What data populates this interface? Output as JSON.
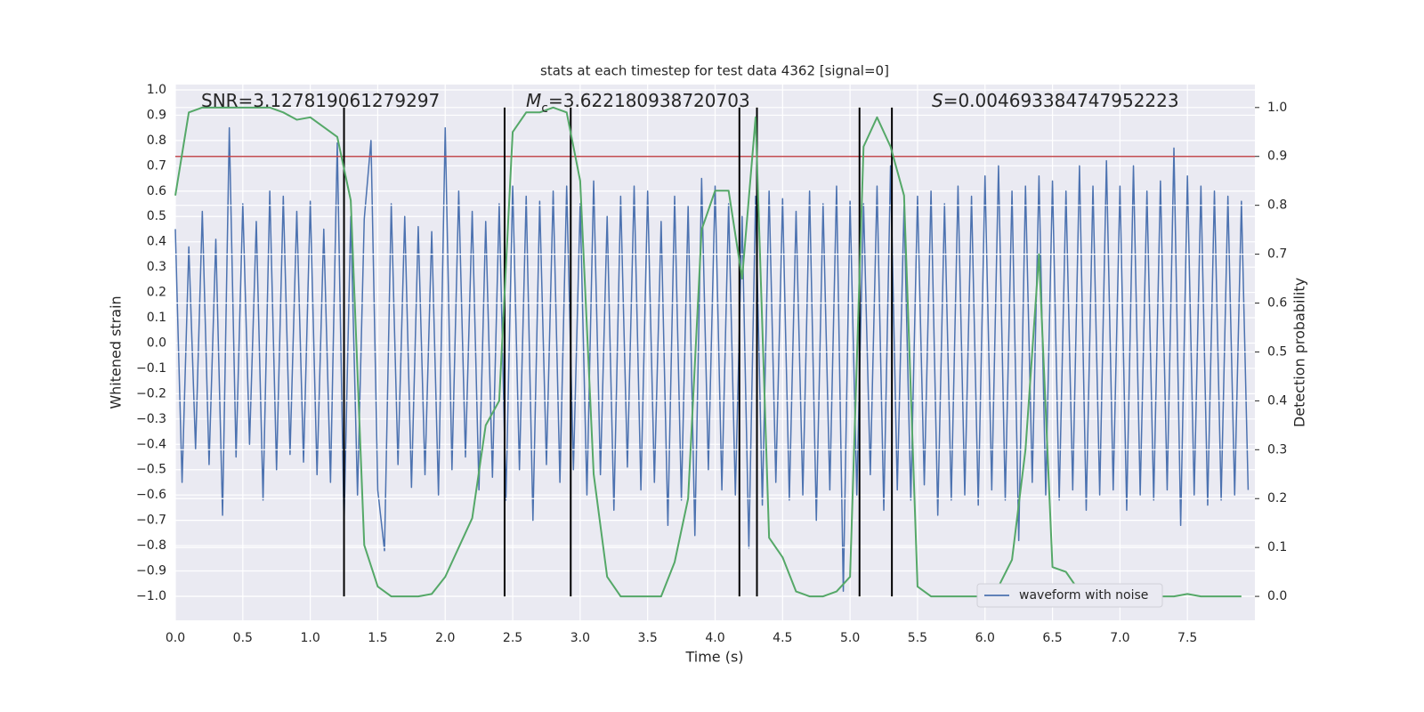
{
  "chart_data": {
    "type": "line",
    "title": "stats at each timestep for test data 4362 [signal=0]",
    "xlabel": "Time (s)",
    "ylabel": "Whitened strain",
    "y2label": "Detection probability",
    "xlim": [
      0,
      8.0
    ],
    "ylim": [
      -1.095,
      1.021
    ],
    "y2lim": [
      -0.049,
      1.047
    ],
    "grid": true,
    "legend": "lower right",
    "xticks": [
      {
        "value": 0,
        "label": "0.0"
      },
      {
        "value": 0.5,
        "label": "0.5"
      },
      {
        "value": 1,
        "label": "1.0"
      },
      {
        "value": 1.5,
        "label": "1.5"
      },
      {
        "value": 2,
        "label": "2.0"
      },
      {
        "value": 2.5,
        "label": "2.5"
      },
      {
        "value": 3,
        "label": "3.0"
      },
      {
        "value": 3.5,
        "label": "3.5"
      },
      {
        "value": 4,
        "label": "4.0"
      },
      {
        "value": 4.5,
        "label": "4.5"
      },
      {
        "value": 5,
        "label": "5.0"
      },
      {
        "value": 5.5,
        "label": "5.5"
      },
      {
        "value": 6,
        "label": "6.0"
      },
      {
        "value": 6.5,
        "label": "6.5"
      },
      {
        "value": 7,
        "label": "7.0"
      },
      {
        "value": 7.5,
        "label": "7.5"
      }
    ],
    "yticks": [
      {
        "value": -1,
        "label": "−1.0"
      },
      {
        "value": -0.9,
        "label": "−0.9"
      },
      {
        "value": -0.8,
        "label": "−0.8"
      },
      {
        "value": -0.7,
        "label": "−0.7"
      },
      {
        "value": -0.6,
        "label": "−0.6"
      },
      {
        "value": -0.5,
        "label": "−0.5"
      },
      {
        "value": -0.4,
        "label": "−0.4"
      },
      {
        "value": -0.3,
        "label": "−0.3"
      },
      {
        "value": -0.2,
        "label": "−0.2"
      },
      {
        "value": -0.1,
        "label": "−0.1"
      },
      {
        "value": 0,
        "label": "0.0"
      },
      {
        "value": 0.1,
        "label": "0.1"
      },
      {
        "value": 0.2,
        "label": "0.2"
      },
      {
        "value": 0.3,
        "label": "0.3"
      },
      {
        "value": 0.4,
        "label": "0.4"
      },
      {
        "value": 0.5,
        "label": "0.5"
      },
      {
        "value": 0.6,
        "label": "0.6"
      },
      {
        "value": 0.7,
        "label": "0.7"
      },
      {
        "value": 0.8,
        "label": "0.8"
      },
      {
        "value": 0.9,
        "label": "0.9"
      },
      {
        "value": 1,
        "label": "1.0"
      }
    ],
    "y2ticks": [
      {
        "value": 0,
        "label": "0.0"
      },
      {
        "value": 0.1,
        "label": "0.1"
      },
      {
        "value": 0.2,
        "label": "0.2"
      },
      {
        "value": 0.3,
        "label": "0.3"
      },
      {
        "value": 0.4,
        "label": "0.4"
      },
      {
        "value": 0.5,
        "label": "0.5"
      },
      {
        "value": 0.6,
        "label": "0.6"
      },
      {
        "value": 0.7,
        "label": "0.7"
      },
      {
        "value": 0.8,
        "label": "0.8"
      },
      {
        "value": 0.9,
        "label": "0.9"
      },
      {
        "value": 1,
        "label": "1.0"
      }
    ],
    "annotations": [
      [
        "SNR=3.127819061279297"
      ],
      [
        "M",
        "c",
        "=3.622180938720703"
      ],
      [
        "S",
        "=0.004693384747952223"
      ]
    ],
    "hline": {
      "y": 0.9,
      "axis": "y2",
      "color": "#c44e52"
    },
    "vlines": {
      "x": [
        1.25,
        2.44,
        2.93,
        4.18,
        4.31,
        5.07,
        5.31
      ],
      "ymin": 0,
      "ymax": 1,
      "axis": "y2",
      "color": "#000000"
    },
    "series": [
      {
        "name": "waveform with noise",
        "color": "#4c72b0",
        "x": [
          0,
          0.05,
          0.1,
          0.15,
          0.2,
          0.25,
          0.3,
          0.35,
          0.4,
          0.45,
          0.5,
          0.55,
          0.6,
          0.65,
          0.7,
          0.75,
          0.8,
          0.85,
          0.9,
          0.95,
          1,
          1.05,
          1.1,
          1.15,
          1.2,
          1.25,
          1.3,
          1.35,
          1.4,
          1.45,
          1.5,
          1.55,
          1.6,
          1.65,
          1.7,
          1.75,
          1.8,
          1.85,
          1.9,
          1.95,
          2,
          2.05,
          2.1,
          2.15,
          2.2,
          2.25,
          2.3,
          2.35,
          2.4,
          2.45,
          2.5,
          2.55,
          2.6,
          2.65,
          2.7,
          2.75,
          2.8,
          2.85,
          2.9,
          2.95,
          3,
          3.05,
          3.1,
          3.15,
          3.2,
          3.25,
          3.3,
          3.35,
          3.4,
          3.45,
          3.5,
          3.55,
          3.6,
          3.65,
          3.7,
          3.75,
          3.8,
          3.85,
          3.9,
          3.95,
          4,
          4.05,
          4.1,
          4.15,
          4.2,
          4.25,
          4.3,
          4.35,
          4.4,
          4.45,
          4.5,
          4.55,
          4.6,
          4.65,
          4.7,
          4.75,
          4.8,
          4.85,
          4.9,
          4.95,
          5,
          5.05,
          5.1,
          5.15,
          5.2,
          5.25,
          5.3,
          5.35,
          5.4,
          5.45,
          5.5,
          5.55,
          5.6,
          5.65,
          5.7,
          5.75,
          5.8,
          5.85,
          5.9,
          5.95,
          6,
          6.05,
          6.1,
          6.15,
          6.2,
          6.25,
          6.3,
          6.35,
          6.4,
          6.45,
          6.5,
          6.55,
          6.6,
          6.65,
          6.7,
          6.75,
          6.8,
          6.85,
          6.9,
          6.95,
          7,
          7.05,
          7.1,
          7.15,
          7.2,
          7.25,
          7.3,
          7.35,
          7.4,
          7.45,
          7.5,
          7.55,
          7.6,
          7.65,
          7.7,
          7.75,
          7.8,
          7.85,
          7.9,
          7.95
        ],
        "values": [
          0.45,
          -0.55,
          0.38,
          -0.42,
          0.52,
          -0.48,
          0.41,
          -0.68,
          0.85,
          -0.45,
          0.55,
          -0.4,
          0.48,
          -0.62,
          0.6,
          -0.5,
          0.58,
          -0.44,
          0.52,
          -0.47,
          0.56,
          -0.52,
          0.45,
          -0.55,
          0.79,
          -0.72,
          0.5,
          -0.6,
          0.49,
          0.8,
          -0.58,
          -0.82,
          0.55,
          -0.48,
          0.5,
          -0.57,
          0.46,
          -0.52,
          0.44,
          -0.6,
          0.85,
          -0.5,
          0.6,
          -0.45,
          0.52,
          -0.58,
          0.48,
          -0.53,
          0.55,
          -0.62,
          0.62,
          -0.5,
          0.58,
          -0.7,
          0.56,
          -0.48,
          0.6,
          -0.55,
          0.62,
          -0.5,
          0.55,
          -0.6,
          0.64,
          -0.52,
          0.5,
          -0.66,
          0.58,
          -0.49,
          0.62,
          -0.58,
          0.6,
          -0.55,
          0.48,
          -0.72,
          0.58,
          -0.62,
          0.54,
          -0.76,
          0.65,
          -0.5,
          0.62,
          -0.58,
          0.55,
          -0.6,
          0.5,
          -0.81,
          0.58,
          -0.64,
          0.6,
          -0.55,
          0.57,
          -0.62,
          0.52,
          -0.6,
          0.6,
          -0.7,
          0.55,
          -0.58,
          0.62,
          -0.98,
          0.56,
          -0.6,
          0.55,
          -0.52,
          0.62,
          -0.66,
          0.7,
          -0.58,
          0.54,
          -0.62,
          0.58,
          -0.56,
          0.6,
          -0.68,
          0.55,
          -0.62,
          0.62,
          -0.6,
          0.58,
          -0.64,
          0.66,
          -0.58,
          0.7,
          -0.62,
          0.6,
          -0.78,
          0.62,
          -0.55,
          0.66,
          -0.6,
          0.64,
          -0.62,
          0.6,
          -0.58,
          0.7,
          -0.66,
          0.62,
          -0.6,
          0.72,
          -0.58,
          0.62,
          -0.66,
          0.7,
          -0.6,
          0.6,
          -0.62,
          0.64,
          -0.58,
          0.77,
          -0.72,
          0.66,
          -0.6,
          0.62,
          -0.64,
          0.6,
          -0.62,
          0.58,
          -0.6,
          0.56,
          -0.58
        ]
      },
      {
        "color": "#55a868",
        "axis": "y2",
        "x": [
          0,
          0.1,
          0.2,
          0.3,
          0.4,
          0.5,
          0.6,
          0.7,
          0.8,
          0.9,
          1,
          1.1,
          1.2,
          1.3,
          1.4,
          1.5,
          1.6,
          1.7,
          1.8,
          1.9,
          2,
          2.1,
          2.2,
          2.3,
          2.4,
          2.5,
          2.6,
          2.7,
          2.8,
          2.9,
          3,
          3.1,
          3.2,
          3.3,
          3.4,
          3.5,
          3.6,
          3.7,
          3.8,
          3.9,
          4,
          4.1,
          4.2,
          4.3,
          4.4,
          4.5,
          4.6,
          4.7,
          4.8,
          4.9,
          5,
          5.1,
          5.2,
          5.3,
          5.4,
          5.5,
          5.6,
          5.7,
          5.8,
          5.9,
          6,
          6.1,
          6.2,
          6.3,
          6.4,
          6.5,
          6.6,
          6.7,
          6.8,
          6.9,
          7,
          7.1,
          7.2,
          7.3,
          7.4,
          7.5,
          7.6,
          7.7,
          7.8,
          7.9
        ],
        "values": [
          0.82,
          0.99,
          1.0,
          1.0,
          1.0,
          1.0,
          1.0,
          1.0,
          0.99,
          0.975,
          0.98,
          0.96,
          0.94,
          0.81,
          0.105,
          0.02,
          0.0,
          0.0,
          0.0,
          0.005,
          0.04,
          0.1,
          0.16,
          0.35,
          0.4,
          0.95,
          0.99,
          0.99,
          1.0,
          0.99,
          0.85,
          0.25,
          0.04,
          0.0,
          0.0,
          0.0,
          0.0,
          0.07,
          0.2,
          0.75,
          0.83,
          0.83,
          0.65,
          0.98,
          0.12,
          0.08,
          0.01,
          0.0,
          0.0,
          0.01,
          0.04,
          0.92,
          0.98,
          0.92,
          0.82,
          0.02,
          0.0,
          0.0,
          0.0,
          0.0,
          0.0,
          0.02,
          0.075,
          0.3,
          0.7,
          0.06,
          0.05,
          0.01,
          0.0,
          0.0,
          0.0,
          0.0,
          0.0,
          0.0,
          0.0,
          0.005,
          0.0,
          0.0,
          0.0,
          0.0
        ]
      }
    ]
  }
}
